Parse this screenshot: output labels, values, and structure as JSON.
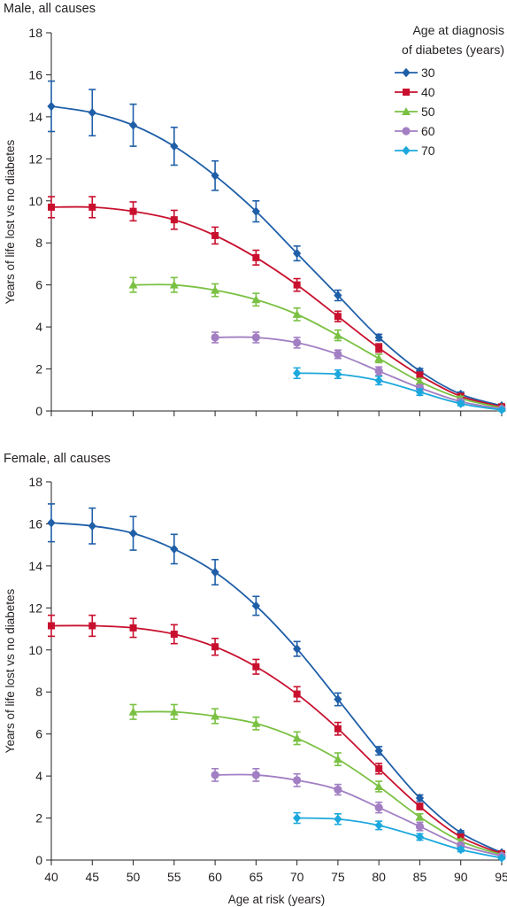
{
  "chart_data": [
    {
      "type": "line",
      "title": "Male, all causes",
      "xlabel": "",
      "ylabel": "Years of life lost vs no diabetes",
      "xlim": [
        40,
        95
      ],
      "ylim": [
        0,
        18
      ],
      "xticks": [
        40,
        45,
        50,
        55,
        60,
        65,
        70,
        75,
        80,
        85,
        90,
        95
      ],
      "yticks": [
        0,
        2,
        4,
        6,
        8,
        10,
        12,
        14,
        16,
        18
      ],
      "error_bars": true,
      "legend": {
        "title_lines": [
          "Age at diagnosis",
          "of diabetes (years)"
        ],
        "placement": "top-right"
      },
      "series": [
        {
          "name": "30",
          "color": "#1f5fa8",
          "marker": "diamond",
          "x": [
            40,
            45,
            50,
            55,
            60,
            65,
            70,
            75,
            80,
            85,
            90,
            95
          ],
          "y": [
            14.5,
            14.2,
            13.6,
            12.6,
            11.2,
            9.5,
            7.5,
            5.5,
            3.5,
            1.9,
            0.8,
            0.25
          ],
          "yerr": [
            1.2,
            1.1,
            1.0,
            0.9,
            0.7,
            0.5,
            0.35,
            0.25,
            0.15,
            0.12,
            0.1,
            0.05
          ]
        },
        {
          "name": "40",
          "color": "#c8102e",
          "marker": "square",
          "x": [
            40,
            45,
            50,
            55,
            60,
            65,
            70,
            75,
            80,
            85,
            90,
            95
          ],
          "y": [
            9.7,
            9.7,
            9.5,
            9.1,
            8.35,
            7.3,
            6.0,
            4.5,
            3.0,
            1.7,
            0.7,
            0.2
          ],
          "yerr": [
            0.5,
            0.5,
            0.45,
            0.45,
            0.4,
            0.35,
            0.3,
            0.25,
            0.2,
            0.15,
            0.1,
            0.05
          ]
        },
        {
          "name": "50",
          "color": "#7ac143",
          "marker": "triangle",
          "x": [
            50,
            55,
            60,
            65,
            70,
            75,
            80,
            85,
            90,
            95
          ],
          "y": [
            6.0,
            6.0,
            5.75,
            5.3,
            4.6,
            3.6,
            2.5,
            1.4,
            0.6,
            0.15
          ],
          "yerr": [
            0.35,
            0.35,
            0.3,
            0.3,
            0.3,
            0.25,
            0.2,
            0.15,
            0.1,
            0.05
          ]
        },
        {
          "name": "60",
          "color": "#a27fc3",
          "marker": "circle",
          "x": [
            60,
            65,
            70,
            75,
            80,
            85,
            90,
            95
          ],
          "y": [
            3.5,
            3.5,
            3.25,
            2.7,
            1.9,
            1.1,
            0.45,
            0.1
          ],
          "yerr": [
            0.25,
            0.25,
            0.25,
            0.2,
            0.2,
            0.15,
            0.1,
            0.05
          ]
        },
        {
          "name": "70",
          "color": "#1ca8dd",
          "marker": "diamond",
          "x": [
            70,
            75,
            80,
            85,
            90,
            95
          ],
          "y": [
            1.8,
            1.75,
            1.45,
            0.9,
            0.35,
            0.05
          ],
          "yerr": [
            0.25,
            0.2,
            0.2,
            0.15,
            0.1,
            0.05
          ]
        }
      ]
    },
    {
      "type": "line",
      "title": "Female, all causes",
      "xlabel": "Age at risk (years)",
      "ylabel": "Years of life lost vs no diabetes",
      "xlim": [
        40,
        95
      ],
      "ylim": [
        0,
        18
      ],
      "xticks": [
        40,
        45,
        50,
        55,
        60,
        65,
        70,
        75,
        80,
        85,
        90,
        95
      ],
      "yticks": [
        0,
        2,
        4,
        6,
        8,
        10,
        12,
        14,
        16,
        18
      ],
      "error_bars": true,
      "series": [
        {
          "name": "30",
          "color": "#1f5fa8",
          "marker": "diamond",
          "x": [
            40,
            45,
            50,
            55,
            60,
            65,
            70,
            75,
            80,
            85,
            90,
            95
          ],
          "y": [
            16.05,
            15.9,
            15.55,
            14.8,
            13.7,
            12.1,
            10.05,
            7.65,
            5.2,
            2.95,
            1.3,
            0.35
          ],
          "yerr": [
            0.9,
            0.85,
            0.8,
            0.7,
            0.6,
            0.45,
            0.35,
            0.3,
            0.2,
            0.15,
            0.1,
            0.05
          ]
        },
        {
          "name": "40",
          "color": "#c8102e",
          "marker": "square",
          "x": [
            40,
            45,
            50,
            55,
            60,
            65,
            70,
            75,
            80,
            85,
            90,
            95
          ],
          "y": [
            11.15,
            11.15,
            11.05,
            10.75,
            10.15,
            9.2,
            7.9,
            6.25,
            4.35,
            2.55,
            1.1,
            0.3
          ],
          "yerr": [
            0.5,
            0.5,
            0.45,
            0.45,
            0.4,
            0.35,
            0.35,
            0.3,
            0.25,
            0.15,
            0.1,
            0.05
          ]
        },
        {
          "name": "50",
          "color": "#7ac143",
          "marker": "triangle",
          "x": [
            50,
            55,
            60,
            65,
            70,
            75,
            80,
            85,
            90,
            95
          ],
          "y": [
            7.05,
            7.05,
            6.85,
            6.5,
            5.8,
            4.8,
            3.5,
            2.05,
            0.9,
            0.25
          ],
          "yerr": [
            0.35,
            0.35,
            0.35,
            0.3,
            0.3,
            0.3,
            0.25,
            0.15,
            0.1,
            0.05
          ]
        },
        {
          "name": "60",
          "color": "#a27fc3",
          "marker": "circle",
          "x": [
            60,
            65,
            70,
            75,
            80,
            85,
            90,
            95
          ],
          "y": [
            4.05,
            4.05,
            3.8,
            3.35,
            2.5,
            1.6,
            0.7,
            0.2
          ],
          "yerr": [
            0.3,
            0.3,
            0.3,
            0.25,
            0.25,
            0.2,
            0.1,
            0.05
          ]
        },
        {
          "name": "70",
          "color": "#1ca8dd",
          "marker": "diamond",
          "x": [
            70,
            75,
            80,
            85,
            90,
            95
          ],
          "y": [
            2.0,
            1.95,
            1.65,
            1.1,
            0.5,
            0.1
          ],
          "yerr": [
            0.25,
            0.25,
            0.2,
            0.15,
            0.1,
            0.05
          ]
        }
      ]
    }
  ]
}
